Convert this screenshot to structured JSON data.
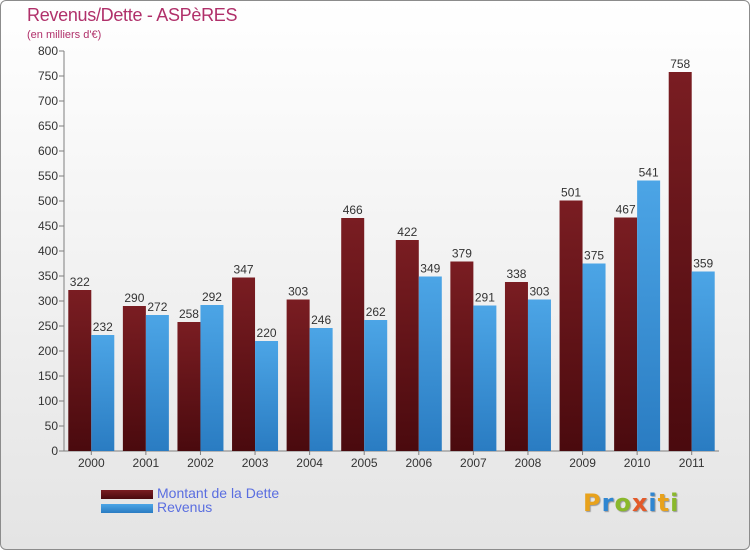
{
  "title": "Revenus/Dette - ASPèRES",
  "subtitle": "(en milliers d'€)",
  "logo": {
    "text": "Proxiti",
    "letters": [
      {
        "ch": "P",
        "color": "#e8a21c"
      },
      {
        "ch": "r",
        "color": "#2f86d1"
      },
      {
        "ch": "o",
        "color": "#8ab82c"
      },
      {
        "ch": "x",
        "color": "#e35a2a"
      },
      {
        "ch": "i",
        "color": "#2f86d1"
      },
      {
        "ch": "t",
        "color": "#e8a21c"
      },
      {
        "ch": "i",
        "color": "#8ab82c"
      }
    ]
  },
  "colors": {
    "dette": "#7a1d22",
    "revenus": "#4ca5e6",
    "text": "#333333",
    "grid": "#7f7f7f"
  },
  "chart_data": {
    "type": "bar",
    "categories": [
      "2000",
      "2001",
      "2002",
      "2003",
      "2004",
      "2005",
      "2006",
      "2007",
      "2008",
      "2009",
      "2010",
      "2011"
    ],
    "series": [
      {
        "name": "Montant de la Dette",
        "values": [
          322,
          290,
          258,
          347,
          303,
          466,
          422,
          379,
          338,
          501,
          467,
          758
        ]
      },
      {
        "name": "Revenus",
        "values": [
          232,
          272,
          292,
          220,
          246,
          262,
          349,
          291,
          303,
          375,
          541,
          359
        ]
      }
    ],
    "ylim": [
      0,
      800
    ],
    "yticks": [
      0,
      50,
      100,
      150,
      200,
      250,
      300,
      350,
      400,
      450,
      500,
      550,
      600,
      650,
      700,
      750,
      800
    ],
    "legend_position": "bottom-left",
    "grid": false
  }
}
